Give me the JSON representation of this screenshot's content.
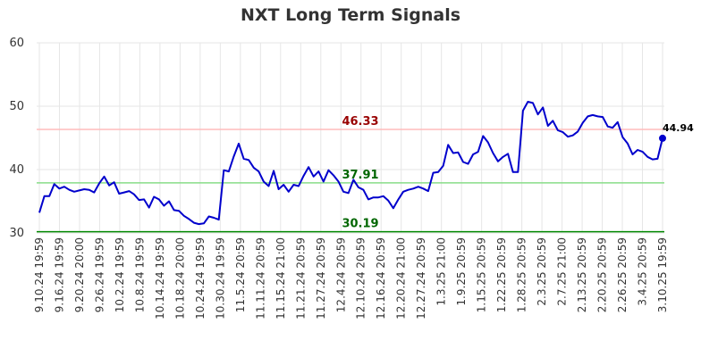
{
  "chart_data": {
    "type": "line",
    "title": "NXT Long Term Signals",
    "ylim": [
      30,
      60
    ],
    "yticks": [
      30,
      40,
      50,
      60
    ],
    "grid": true,
    "x_tick_labels": [
      "9.10.24 19:59",
      "9.16.24 19:59",
      "9.20.24 20:00",
      "9.26.24 19:59",
      "10.2.24 19:59",
      "10.8.24 19:59",
      "10.14.24 19:59",
      "10.18.24 20:00",
      "10.24.24 19:59",
      "10.30.24 19:59",
      "11.5.24 20:59",
      "11.11.24 20:59",
      "11.15.24 21:00",
      "11.21.24 20:59",
      "11.27.24 20:59",
      "12.4.24 20:59",
      "12.10.24 20:59",
      "12.16.24 20:59",
      "12.20.24 21:00",
      "12.27.24 20:59",
      "1.3.25 21:00",
      "1.9.25 20:59",
      "1.15.25 20:59",
      "1.22.25 20:59",
      "1.28.25 20:59",
      "2.3.25 20:59",
      "2.7.25 21:00",
      "2.13.25 20:59",
      "2.20.25 20:59",
      "2.26.25 20:59",
      "3.4.25 20:59",
      "3.10.25 19:59"
    ],
    "series": [
      {
        "color": "#0000cc",
        "values": [
          33.2,
          35.8,
          35.8,
          37.7,
          37.0,
          37.3,
          36.8,
          36.5,
          36.7,
          36.9,
          36.8,
          36.4,
          37.8,
          38.9,
          37.5,
          38.0,
          36.2,
          36.4,
          36.6,
          36.1,
          35.2,
          35.3,
          34.0,
          35.7,
          35.3,
          34.3,
          35.0,
          33.6,
          33.5,
          32.7,
          32.2,
          31.6,
          31.4,
          31.5,
          32.6,
          32.4,
          32.1,
          39.9,
          39.7,
          42.1,
          44.1,
          41.7,
          41.5,
          40.3,
          39.7,
          38.1,
          37.4,
          39.8,
          36.9,
          37.6,
          36.5,
          37.6,
          37.4,
          39.0,
          40.4,
          38.9,
          39.7,
          38.1,
          39.9,
          39.1,
          38.1,
          36.5,
          36.3,
          38.4,
          37.2,
          36.8,
          35.3,
          35.6,
          35.6,
          35.8,
          35.1,
          33.9,
          35.3,
          36.5,
          36.8,
          37.0,
          37.3,
          37.0,
          36.6,
          39.5,
          39.6,
          40.6,
          43.9,
          42.6,
          42.7,
          41.2,
          40.9,
          42.4,
          42.8,
          45.3,
          44.3,
          42.6,
          41.3,
          42.0,
          42.5,
          39.6,
          39.6,
          49.3,
          50.7,
          50.5,
          48.7,
          49.8,
          46.9,
          47.7,
          46.2,
          45.9,
          45.2,
          45.4,
          46.0,
          47.4,
          48.4,
          48.6,
          48.4,
          48.3,
          46.8,
          46.6,
          47.5,
          45.1,
          44.1,
          42.4,
          43.1,
          42.8,
          42.0,
          41.6,
          41.7,
          44.94
        ]
      }
    ],
    "reference_lines": [
      {
        "value": 46.33,
        "label": "46.33",
        "line_color": "#ffbbbb",
        "text_color": "#990000"
      },
      {
        "value": 37.91,
        "label": "37.91",
        "line_color": "#88dd88",
        "text_color": "#006600"
      },
      {
        "value": 30.19,
        "label": "30.19",
        "line_color": "#008800",
        "text_color": "#006600"
      }
    ],
    "last_value": {
      "value": 44.94,
      "label": "44.94"
    }
  }
}
